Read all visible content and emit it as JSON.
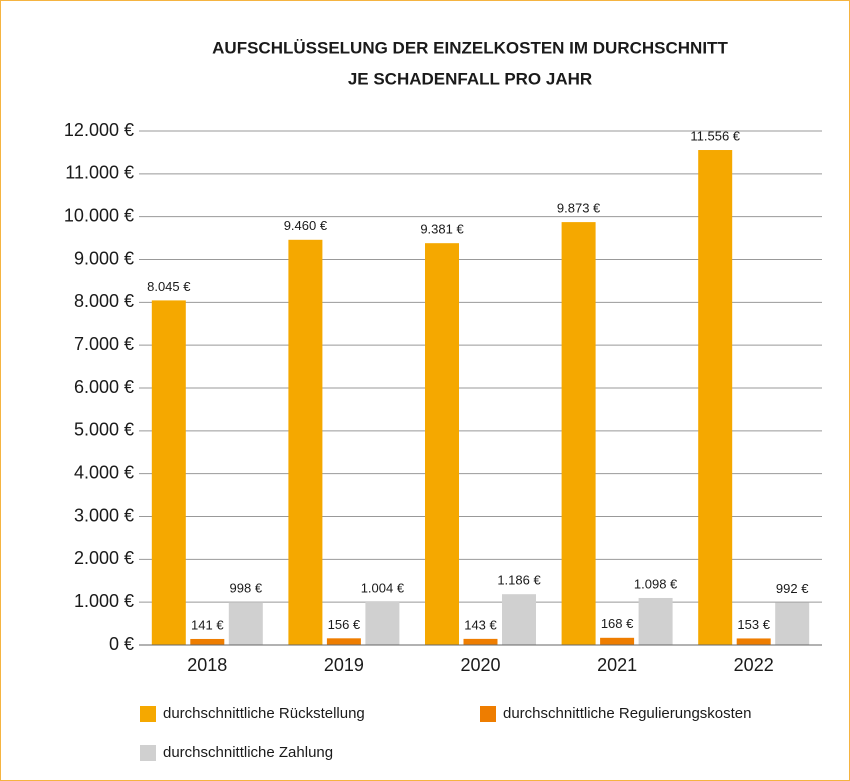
{
  "chart_data": {
    "type": "bar",
    "title": [
      "AUFSCHLÜSSELUNG DER EINZELKOSTEN IM DURCHSCHNITT",
      "JE SCHADENFALL PRO JAHR"
    ],
    "categories": [
      "2018",
      "2019",
      "2020",
      "2021",
      "2022"
    ],
    "series": [
      {
        "name": "durchschnittliche Rückstellung",
        "color": "#f5a800",
        "values": [
          8045,
          9460,
          9381,
          9873,
          11556
        ],
        "value_labels": [
          "8.045 €",
          "9.460 €",
          "9.381 €",
          "9.873 €",
          "11.556 €"
        ]
      },
      {
        "name": "durchschnittliche Regulierungskosten",
        "color": "#ee7d00",
        "values": [
          141,
          156,
          143,
          168,
          153
        ],
        "value_labels": [
          "141 €",
          "156 €",
          "143 €",
          "168 €",
          "153 €"
        ]
      },
      {
        "name": "durchschnittliche Zahlung",
        "color": "#d0d0d0",
        "values": [
          998,
          1004,
          1186,
          1098,
          992
        ],
        "value_labels": [
          "998 €",
          "1.004 €",
          "1.186 €",
          "1.098 €",
          "992 €"
        ]
      }
    ],
    "ylim": [
      0,
      12000
    ],
    "yticks": [
      {
        "value": 0,
        "label": "0 €"
      },
      {
        "value": 1000,
        "label": "1.000 €"
      },
      {
        "value": 2000,
        "label": "2.000 €"
      },
      {
        "value": 3000,
        "label": "3.000 €"
      },
      {
        "value": 4000,
        "label": "4.000 €"
      },
      {
        "value": 5000,
        "label": "5.000 €"
      },
      {
        "value": 6000,
        "label": "6.000 €"
      },
      {
        "value": 7000,
        "label": "7.000 €"
      },
      {
        "value": 8000,
        "label": "8.000 €"
      },
      {
        "value": 9000,
        "label": "9.000 €"
      },
      {
        "value": 10000,
        "label": "10.000 €"
      },
      {
        "value": 11000,
        "label": "11.000 €"
      },
      {
        "value": 12000,
        "label": "12.000 €"
      }
    ],
    "grid": true
  }
}
